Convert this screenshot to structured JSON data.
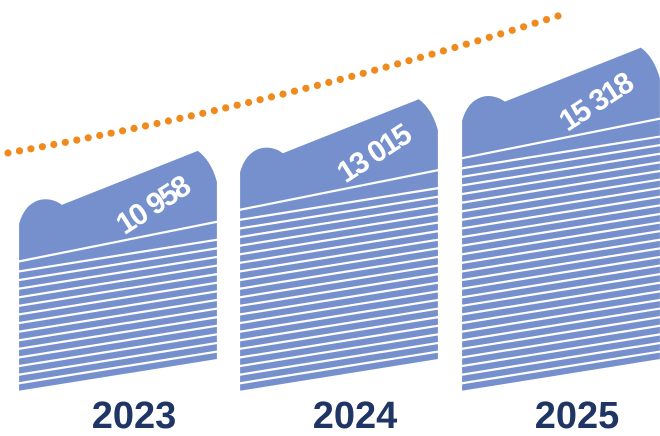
{
  "colors": {
    "sheet": "#7590cc",
    "sheet_edge": "#ffffff",
    "trend": "#ef8a1c",
    "year_text": "#1f3564",
    "value_text": "#ffffff"
  },
  "chart_data": {
    "type": "bar",
    "title": "",
    "xlabel": "",
    "ylabel": "",
    "categories": [
      "2023",
      "2024",
      "2025"
    ],
    "value_labels": [
      "10 958",
      "13 015",
      "15 318"
    ],
    "values": [
      10958,
      13015,
      15318
    ],
    "trend_line": "dotted",
    "grid": false
  }
}
